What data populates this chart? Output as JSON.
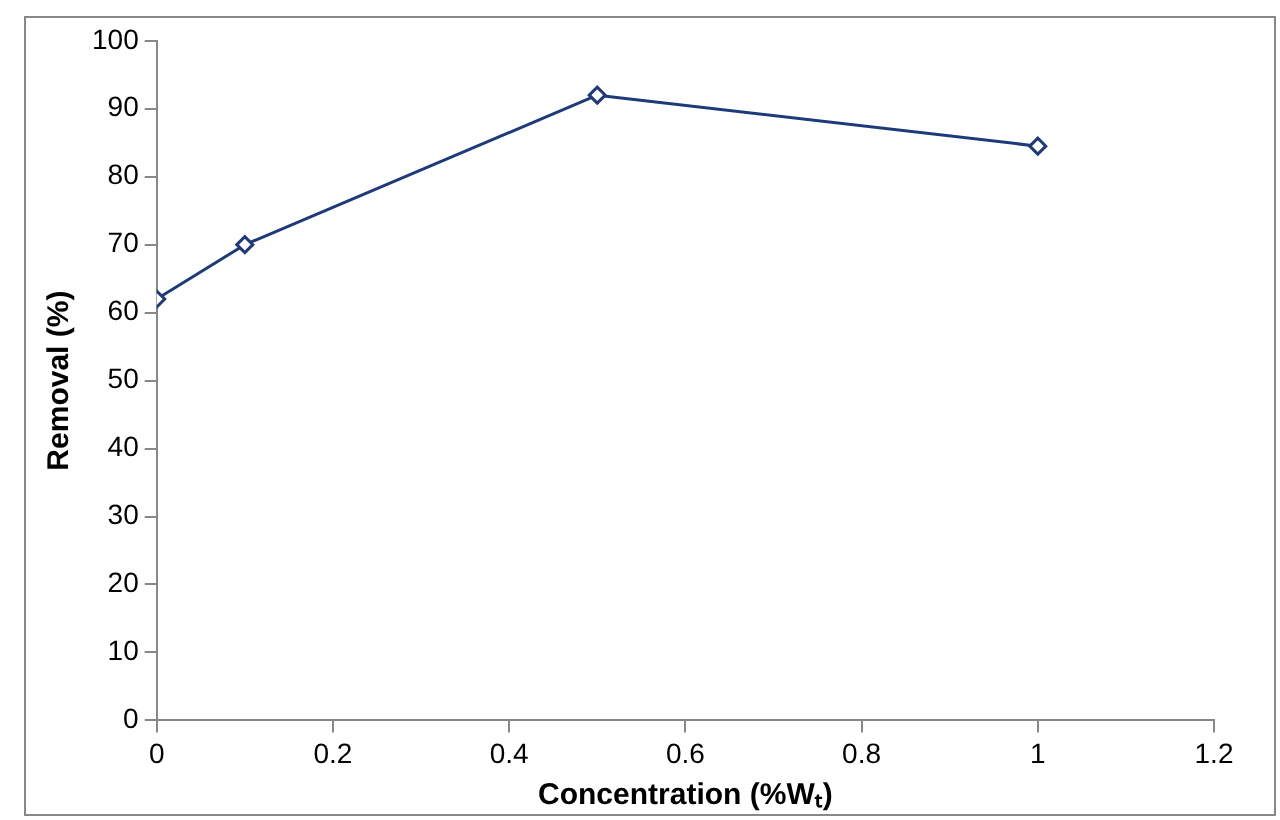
{
  "chart_data": {
    "type": "line",
    "xlabel": "Concentration (%Wₜ)",
    "ylabel": "Removal (%)",
    "x": [
      0,
      0.1,
      0.5,
      1
    ],
    "series": [
      {
        "color": "#1f3a7a",
        "values": [
          62,
          70,
          92,
          84.5
        ]
      }
    ],
    "xlim": [
      0,
      1.2
    ],
    "xticks": [
      0,
      0.2,
      0.4,
      0.6,
      0.8,
      1,
      1.2
    ],
    "ylim": [
      0,
      100
    ],
    "yticks": [
      0,
      10,
      20,
      30,
      40,
      50,
      60,
      70,
      80,
      90,
      100
    ],
    "grid": false,
    "legend": false,
    "marker": "diamond",
    "line_style": "solid"
  }
}
